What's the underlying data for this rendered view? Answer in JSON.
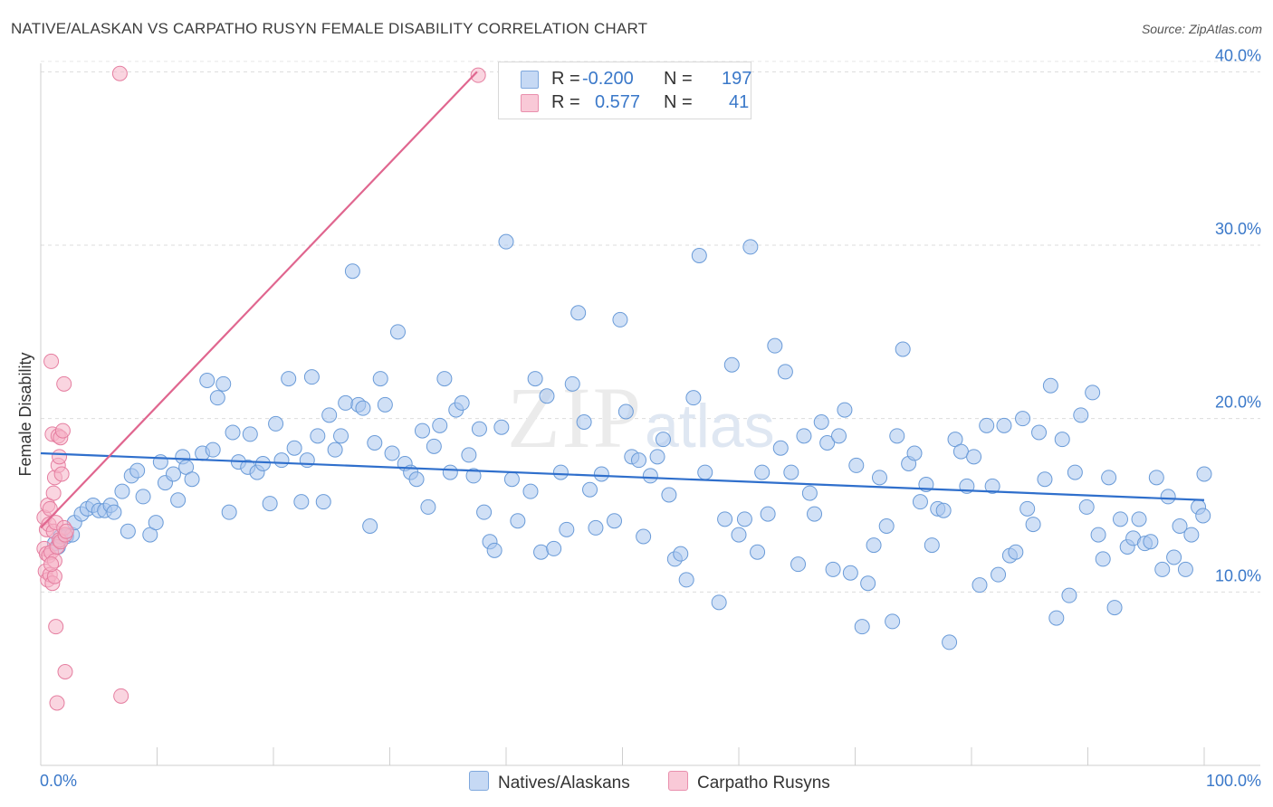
{
  "title": "NATIVE/ALASKAN VS CARPATHO RUSYN FEMALE DISABILITY CORRELATION CHART",
  "source": "Source: ZipAtlas.com",
  "watermark": {
    "zip": "ZIP",
    "atlas": "atlas"
  },
  "legend": {
    "series1": {
      "r_label": "R =",
      "r_value": "-0.200",
      "n_label": "N =",
      "n_value": "197",
      "color": "#a9c6ef",
      "stroke": "#6a9bd8"
    },
    "series2": {
      "r_label": "R =",
      "r_value": "0.577",
      "n_label": "N =",
      "n_value": "41",
      "color": "#f5b3c6",
      "stroke": "#e57ea0"
    }
  },
  "bottom_legend": {
    "series1": "Natives/Alaskans",
    "series2": "Carpatho Rusyns"
  },
  "chart_data": {
    "type": "scatter",
    "title": "NATIVE/ALASKAN VS CARPATHO RUSYN FEMALE DISABILITY CORRELATION CHART",
    "xlabel": "",
    "ylabel": "Female Disability",
    "xlim": [
      0,
      100
    ],
    "ylim": [
      0,
      42
    ],
    "x_tick_labels": [
      "0.0%",
      "100.0%"
    ],
    "y_ticks": [
      10,
      20,
      30,
      40
    ],
    "y_tick_labels": [
      "10.0%",
      "20.0%",
      "30.0%",
      "40.0%"
    ],
    "grid": true,
    "series": [
      {
        "name": "Natives/Alaskans",
        "color": "#a9c6ef",
        "stroke": "#6a9bd8",
        "trend": {
          "x": [
            0,
            100
          ],
          "y": [
            18.0,
            15.3
          ],
          "color": "#2f6fcc"
        },
        "points": [
          [
            1.2,
            12.8
          ],
          [
            1.5,
            12.6
          ],
          [
            1.7,
            13.2
          ],
          [
            2.2,
            13.2
          ],
          [
            2.7,
            13.3
          ],
          [
            2.9,
            14.0
          ],
          [
            3.5,
            14.5
          ],
          [
            4.0,
            14.8
          ],
          [
            4.5,
            15.0
          ],
          [
            5.0,
            14.7
          ],
          [
            5.5,
            14.7
          ],
          [
            6.0,
            15.0
          ],
          [
            6.3,
            14.6
          ],
          [
            7.0,
            15.8
          ],
          [
            7.5,
            13.5
          ],
          [
            7.8,
            16.7
          ],
          [
            8.3,
            17.0
          ],
          [
            8.8,
            15.5
          ],
          [
            9.4,
            13.3
          ],
          [
            9.9,
            14.0
          ],
          [
            10.3,
            17.5
          ],
          [
            10.7,
            16.3
          ],
          [
            11.4,
            16.8
          ],
          [
            11.8,
            15.3
          ],
          [
            12.2,
            17.8
          ],
          [
            12.5,
            17.2
          ],
          [
            13.0,
            16.5
          ],
          [
            13.9,
            18.0
          ],
          [
            14.3,
            22.2
          ],
          [
            14.8,
            18.2
          ],
          [
            15.2,
            21.2
          ],
          [
            15.7,
            22.0
          ],
          [
            16.2,
            14.6
          ],
          [
            16.5,
            19.2
          ],
          [
            17.0,
            17.5
          ],
          [
            17.8,
            17.2
          ],
          [
            18.0,
            19.1
          ],
          [
            18.6,
            16.9
          ],
          [
            19.1,
            17.4
          ],
          [
            19.7,
            15.1
          ],
          [
            20.2,
            19.7
          ],
          [
            20.7,
            17.6
          ],
          [
            21.3,
            22.3
          ],
          [
            21.8,
            18.3
          ],
          [
            22.4,
            15.2
          ],
          [
            22.9,
            17.6
          ],
          [
            23.3,
            22.4
          ],
          [
            23.8,
            19.0
          ],
          [
            24.3,
            15.2
          ],
          [
            24.8,
            20.2
          ],
          [
            25.3,
            18.2
          ],
          [
            25.8,
            19.0
          ],
          [
            26.2,
            20.9
          ],
          [
            26.8,
            28.5
          ],
          [
            27.3,
            20.8
          ],
          [
            27.7,
            20.6
          ],
          [
            28.3,
            13.8
          ],
          [
            28.7,
            18.6
          ],
          [
            29.2,
            22.3
          ],
          [
            29.6,
            20.8
          ],
          [
            30.2,
            18.0
          ],
          [
            30.7,
            25.0
          ],
          [
            31.3,
            17.4
          ],
          [
            31.8,
            16.9
          ],
          [
            32.3,
            16.5
          ],
          [
            32.8,
            19.3
          ],
          [
            33.3,
            14.9
          ],
          [
            33.8,
            18.4
          ],
          [
            34.3,
            19.6
          ],
          [
            34.7,
            22.3
          ],
          [
            35.2,
            16.9
          ],
          [
            35.7,
            20.5
          ],
          [
            36.2,
            20.9
          ],
          [
            36.8,
            17.9
          ],
          [
            37.2,
            16.7
          ],
          [
            37.7,
            19.4
          ],
          [
            38.1,
            14.6
          ],
          [
            38.6,
            12.9
          ],
          [
            39.0,
            12.4
          ],
          [
            39.6,
            19.5
          ],
          [
            40.0,
            30.2
          ],
          [
            40.5,
            16.5
          ],
          [
            41.0,
            14.1
          ],
          [
            42.1,
            15.8
          ],
          [
            42.5,
            22.3
          ],
          [
            43.0,
            12.3
          ],
          [
            43.5,
            21.3
          ],
          [
            44.1,
            12.5
          ],
          [
            44.7,
            16.9
          ],
          [
            45.2,
            13.6
          ],
          [
            45.7,
            22.0
          ],
          [
            46.2,
            26.1
          ],
          [
            46.7,
            19.8
          ],
          [
            47.2,
            15.9
          ],
          [
            47.7,
            13.7
          ],
          [
            48.2,
            16.8
          ],
          [
            49.3,
            14.1
          ],
          [
            49.8,
            25.7
          ],
          [
            50.3,
            20.4
          ],
          [
            50.8,
            17.8
          ],
          [
            51.4,
            17.6
          ],
          [
            51.8,
            13.2
          ],
          [
            52.4,
            16.7
          ],
          [
            53.0,
            17.8
          ],
          [
            53.5,
            18.8
          ],
          [
            54.0,
            15.6
          ],
          [
            54.5,
            11.9
          ],
          [
            55.0,
            12.2
          ],
          [
            55.5,
            10.7
          ],
          [
            56.1,
            21.2
          ],
          [
            56.6,
            29.4
          ],
          [
            57.1,
            16.9
          ],
          [
            58.3,
            9.4
          ],
          [
            58.8,
            14.2
          ],
          [
            59.4,
            23.1
          ],
          [
            60.0,
            13.3
          ],
          [
            60.5,
            14.2
          ],
          [
            61.0,
            29.9
          ],
          [
            61.6,
            12.3
          ],
          [
            62.0,
            16.9
          ],
          [
            62.5,
            14.5
          ],
          [
            63.1,
            24.2
          ],
          [
            63.6,
            18.3
          ],
          [
            64.0,
            22.7
          ],
          [
            64.5,
            16.9
          ],
          [
            65.1,
            11.6
          ],
          [
            65.6,
            19.0
          ],
          [
            66.1,
            15.7
          ],
          [
            66.5,
            14.5
          ],
          [
            67.1,
            19.8
          ],
          [
            67.6,
            18.6
          ],
          [
            68.1,
            11.3
          ],
          [
            68.6,
            19.0
          ],
          [
            69.1,
            20.5
          ],
          [
            69.6,
            11.1
          ],
          [
            70.1,
            17.3
          ],
          [
            70.6,
            8.0
          ],
          [
            71.1,
            10.5
          ],
          [
            71.6,
            12.7
          ],
          [
            72.1,
            16.6
          ],
          [
            72.7,
            13.8
          ],
          [
            73.2,
            8.3
          ],
          [
            73.6,
            19.0
          ],
          [
            74.1,
            24.0
          ],
          [
            74.6,
            17.4
          ],
          [
            75.1,
            18.0
          ],
          [
            75.6,
            15.2
          ],
          [
            76.1,
            16.2
          ],
          [
            76.6,
            12.7
          ],
          [
            77.1,
            14.8
          ],
          [
            77.6,
            14.7
          ],
          [
            78.1,
            7.1
          ],
          [
            78.6,
            18.8
          ],
          [
            79.1,
            18.1
          ],
          [
            79.6,
            16.1
          ],
          [
            80.2,
            17.8
          ],
          [
            80.7,
            10.4
          ],
          [
            81.3,
            19.6
          ],
          [
            81.8,
            16.1
          ],
          [
            82.3,
            11.0
          ],
          [
            82.8,
            19.6
          ],
          [
            83.3,
            12.1
          ],
          [
            83.8,
            12.3
          ],
          [
            84.4,
            20.0
          ],
          [
            84.8,
            14.8
          ],
          [
            85.3,
            13.9
          ],
          [
            85.8,
            19.2
          ],
          [
            86.3,
            16.5
          ],
          [
            86.8,
            21.9
          ],
          [
            87.3,
            8.5
          ],
          [
            87.8,
            18.8
          ],
          [
            88.4,
            9.8
          ],
          [
            88.9,
            16.9
          ],
          [
            89.4,
            20.2
          ],
          [
            89.9,
            14.9
          ],
          [
            90.4,
            21.5
          ],
          [
            90.9,
            13.3
          ],
          [
            91.3,
            11.9
          ],
          [
            91.8,
            16.6
          ],
          [
            92.3,
            9.1
          ],
          [
            92.8,
            14.2
          ],
          [
            93.4,
            12.6
          ],
          [
            93.9,
            13.1
          ],
          [
            94.4,
            14.2
          ],
          [
            94.9,
            12.8
          ],
          [
            95.4,
            12.9
          ],
          [
            95.9,
            16.6
          ],
          [
            96.4,
            11.3
          ],
          [
            96.9,
            15.5
          ],
          [
            97.4,
            12.0
          ],
          [
            97.9,
            13.8
          ],
          [
            98.4,
            11.3
          ],
          [
            98.9,
            13.3
          ],
          [
            99.5,
            14.9
          ],
          [
            99.9,
            14.4
          ],
          [
            100.0,
            16.8
          ]
        ]
      },
      {
        "name": "Carpatho Rusyns",
        "color": "#f5b3c6",
        "stroke": "#e57ea0",
        "trend": {
          "x": [
            0,
            37.5
          ],
          "y": [
            13.7,
            40.0
          ],
          "color": "#e0668f"
        },
        "points": [
          [
            0.3,
            12.5
          ],
          [
            0.3,
            14.3
          ],
          [
            0.4,
            11.2
          ],
          [
            0.5,
            12.2
          ],
          [
            0.5,
            13.6
          ],
          [
            0.6,
            15.0
          ],
          [
            0.6,
            10.7
          ],
          [
            0.7,
            12.1
          ],
          [
            0.7,
            13.9
          ],
          [
            0.8,
            14.8
          ],
          [
            0.8,
            11.0
          ],
          [
            0.9,
            23.3
          ],
          [
            0.9,
            12.3
          ],
          [
            1.0,
            19.1
          ],
          [
            1.0,
            10.5
          ],
          [
            1.1,
            15.7
          ],
          [
            1.1,
            13.5
          ],
          [
            1.2,
            16.6
          ],
          [
            1.2,
            11.8
          ],
          [
            1.3,
            8.0
          ],
          [
            1.3,
            14.0
          ],
          [
            1.4,
            3.6
          ],
          [
            1.4,
            12.6
          ],
          [
            1.5,
            17.3
          ],
          [
            1.5,
            19.0
          ],
          [
            1.6,
            13.0
          ],
          [
            1.6,
            17.8
          ],
          [
            1.7,
            18.9
          ],
          [
            1.7,
            12.9
          ],
          [
            1.8,
            16.8
          ],
          [
            1.9,
            19.3
          ],
          [
            2.0,
            22.0
          ],
          [
            2.0,
            13.7
          ],
          [
            2.1,
            5.4
          ],
          [
            2.1,
            13.3
          ],
          [
            2.2,
            13.5
          ],
          [
            6.8,
            39.9
          ],
          [
            6.9,
            4.0
          ],
          [
            37.6,
            39.8
          ],
          [
            1.2,
            10.9
          ],
          [
            0.9,
            11.6
          ]
        ]
      }
    ]
  }
}
